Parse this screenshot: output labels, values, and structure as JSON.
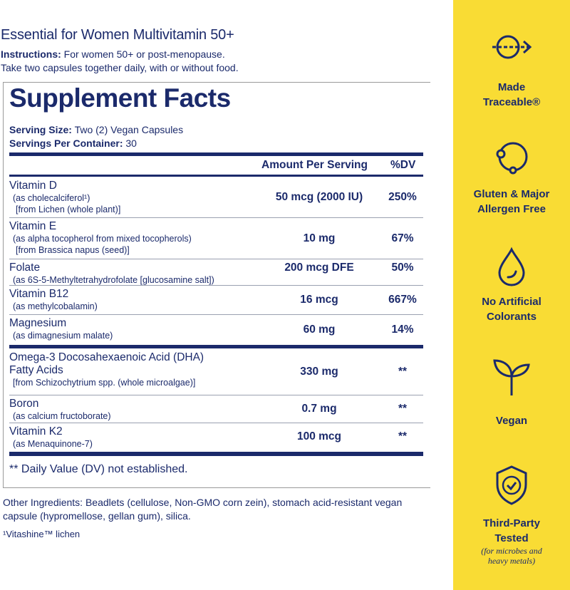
{
  "product_title": "Essential for Women Multivitamin 50+",
  "instructions": {
    "label": "Instructions:",
    "line1": "For women 50+ or post-menopause.",
    "line2": "Take two capsules together daily, with or without food."
  },
  "facts": {
    "heading": "Supplement Facts",
    "serving_size_label": "Serving Size:",
    "serving_size": "Two (2) Vegan Capsules",
    "servings_label": "Servings Per Container:",
    "servings": "30",
    "col_amount": "Amount Per Serving",
    "col_dv": "%DV",
    "rows": [
      {
        "name": "Vitamin D",
        "sub": [
          "(as cholecalciferol¹)",
          "[from Lichen (whole plant)]"
        ],
        "amount": "50 mcg (2000 IU)",
        "dv": "250%"
      },
      {
        "name": "Vitamin E",
        "sub": [
          "(as alpha tocopherol from mixed tocopherols)",
          "[from Brassica napus (seed)]"
        ],
        "amount": "10 mg",
        "dv": "67%"
      },
      {
        "name": "Folate",
        "sub": [
          "(as 6S-5-Methyltetrahydrofolate [glucosamine salt])"
        ],
        "amount": "200 mcg DFE",
        "dv": "50%"
      },
      {
        "name": "Vitamin B12",
        "sub": [
          "(as methylcobalamin)"
        ],
        "amount": "16 mcg",
        "dv": "667%"
      },
      {
        "name": "Magnesium",
        "sub": [
          "(as dimagnesium malate)"
        ],
        "amount": "60 mg",
        "dv": "14%"
      },
      {
        "name": "Omega-3 Docosahexaenoic Acid (DHA)",
        "name2": "Fatty Acids",
        "sub": [
          "[from Schizochytrium spp. (whole microalgae)]"
        ],
        "amount": "330 mg",
        "dv": "**"
      },
      {
        "name": "Boron",
        "sub": [
          "(as calcium fructoborate)"
        ],
        "amount": "0.7 mg",
        "dv": "**"
      },
      {
        "name": "Vitamin K2",
        "sub": [
          "(as Menaquinone-7)"
        ],
        "amount": "100 mcg",
        "dv": "**"
      }
    ],
    "footnote": "** Daily Value (DV) not established."
  },
  "other_ingredients": "Other Ingredients: Beadlets (cellulose, Non-GMO corn zein), stomach acid-resistant vegan capsule (hypromellose, gellan gum), silica.",
  "trademark_note": "¹Vitashine™ lichen",
  "badges": [
    {
      "icon": "traceable-arrow-icon",
      "line1": "Made",
      "line2": "Traceable®"
    },
    {
      "icon": "allergen-free-circle-icon",
      "line1": "Gluten & Major",
      "line2": "Allergen Free"
    },
    {
      "icon": "droplet-icon",
      "line1": "No Artificial",
      "line2": "Colorants"
    },
    {
      "icon": "sprout-icon",
      "line1": "Vegan"
    },
    {
      "icon": "shield-check-icon",
      "line1": "Third-Party",
      "line2": "Tested",
      "note1": "(for microbes and",
      "note2": "heavy metals)"
    }
  ],
  "colors": {
    "navy": "#1b2a6b",
    "yellow": "#f9dc34"
  }
}
